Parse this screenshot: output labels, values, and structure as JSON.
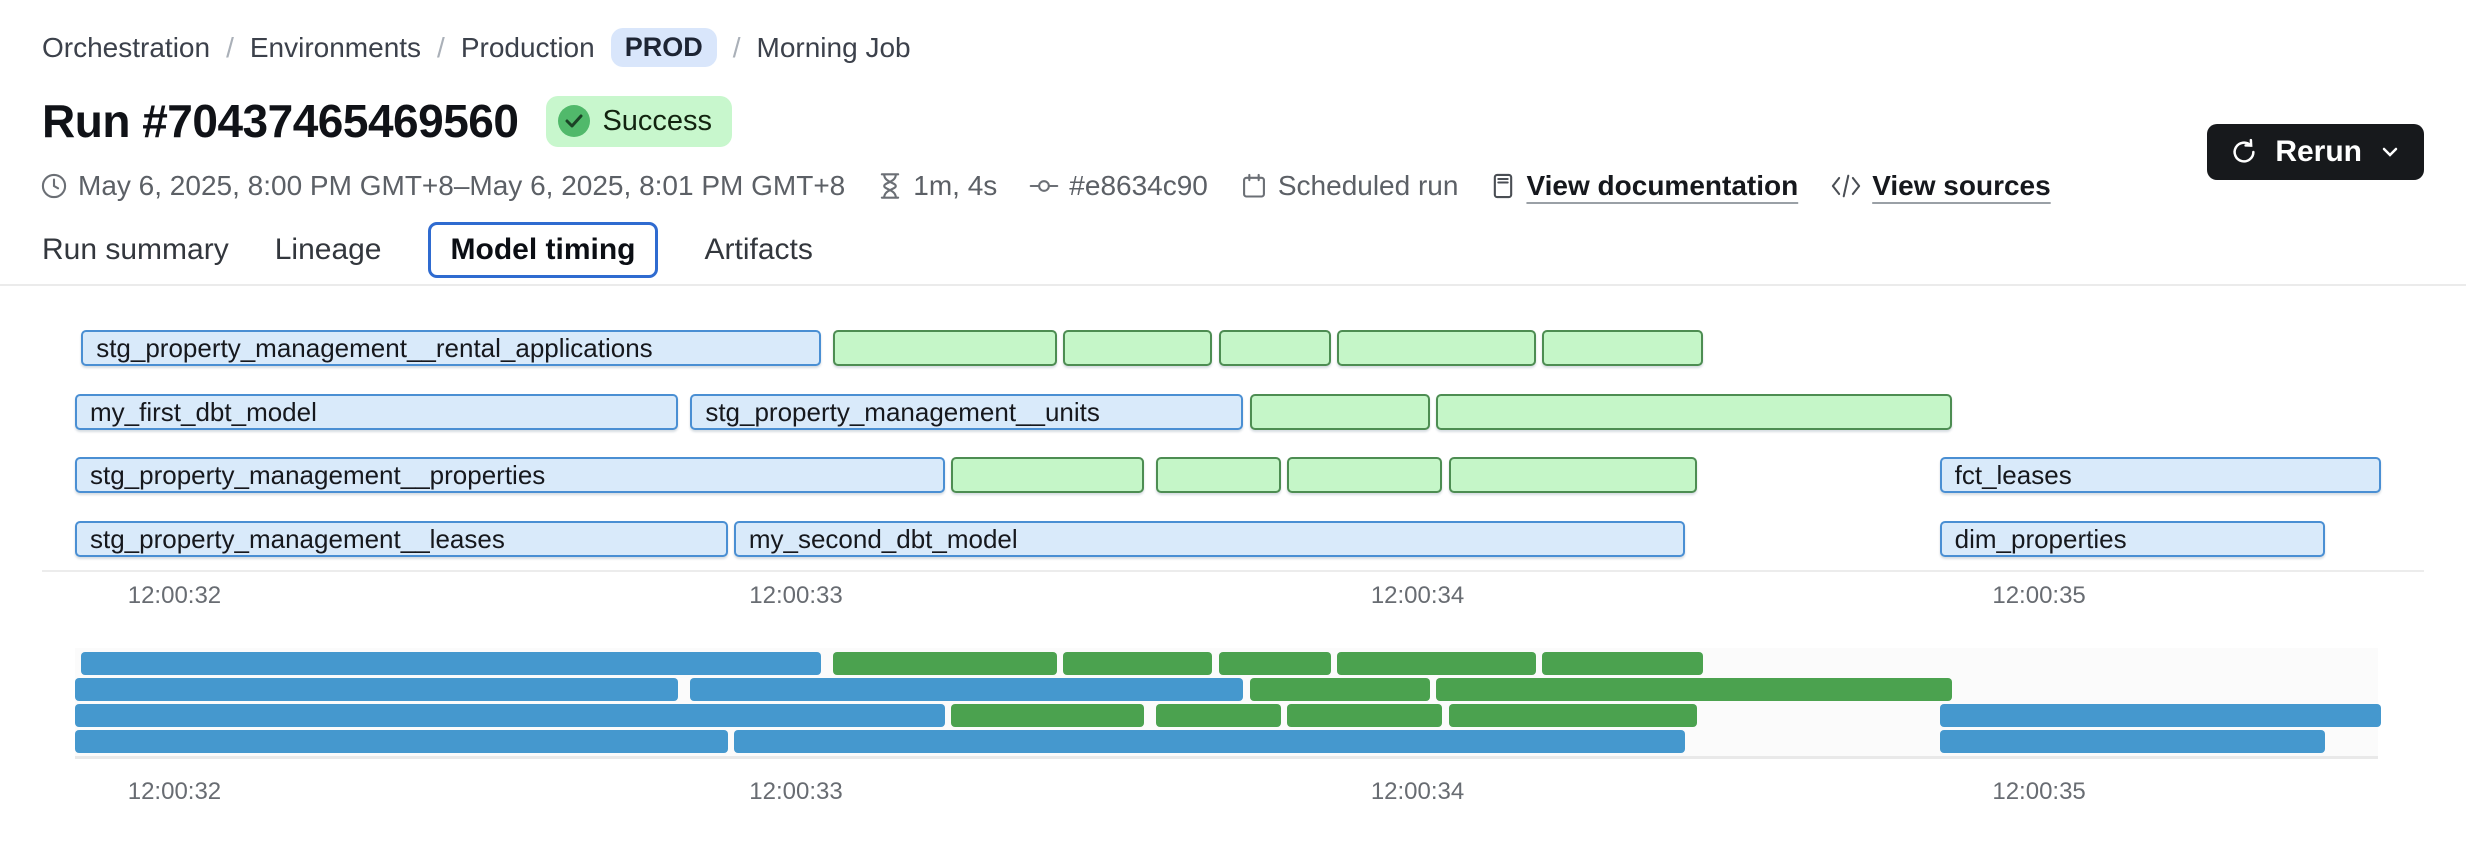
{
  "breadcrumb": {
    "separator": "/",
    "items": [
      {
        "label": "Orchestration",
        "type": "link"
      },
      {
        "label": "Environments",
        "type": "link"
      },
      {
        "label": "Production",
        "type": "link"
      },
      {
        "label": "PROD",
        "type": "badge"
      },
      {
        "label": "Morning Job",
        "type": "current"
      }
    ]
  },
  "header": {
    "title": "Run #70437465469560",
    "status": "Success"
  },
  "meta": {
    "time_range": "May 6, 2025, 8:00 PM GMT+8–May 6, 2025, 8:01 PM GMT+8",
    "duration": "1m, 4s",
    "commit": "#e8634c90",
    "trigger": "Scheduled run",
    "doc_link": "View documentation",
    "sources_link": "View sources",
    "rerun_label": "Rerun"
  },
  "tabs": [
    {
      "label": "Run summary",
      "selected": false
    },
    {
      "label": "Lineage",
      "selected": false
    },
    {
      "label": "Model timing",
      "selected": true
    },
    {
      "label": "Artifacts",
      "selected": false
    }
  ],
  "chart_data": {
    "type": "gantt",
    "title": "Model timing",
    "x_axis": {
      "tick_labels": [
        "12:00:32",
        "12:00:33",
        "12:00:34",
        "12:00:35"
      ],
      "tick_seconds": [
        32,
        33,
        34,
        35
      ],
      "domain_seconds": [
        31.84,
        35.6
      ]
    },
    "colors": {
      "bar_blue_fill": "#d9eafa",
      "bar_blue_border": "#4a8fd3",
      "bar_green_fill": "#c5f6c8",
      "bar_green_border": "#4d8d52",
      "minimap_blue": "#4598ce",
      "minimap_green": "#4ba24f"
    },
    "rows": [
      {
        "segments": [
          {
            "label": "stg_property_management__rental_applications",
            "color": "blue",
            "start_s": 31.85,
            "end_s": 33.04
          },
          {
            "color": "green",
            "start_s": 33.06,
            "end_s": 33.42
          },
          {
            "color": "green",
            "start_s": 33.43,
            "end_s": 33.67
          },
          {
            "color": "green",
            "start_s": 33.68,
            "end_s": 33.86
          },
          {
            "color": "green",
            "start_s": 33.87,
            "end_s": 34.19
          },
          {
            "color": "green",
            "start_s": 34.2,
            "end_s": 34.46
          }
        ]
      },
      {
        "segments": [
          {
            "label": "my_first_dbt_model",
            "color": "blue",
            "start_s": 31.84,
            "end_s": 32.81
          },
          {
            "label": "stg_property_management__units",
            "color": "blue",
            "start_s": 32.83,
            "end_s": 33.72
          },
          {
            "color": "green",
            "start_s": 33.73,
            "end_s": 34.02
          },
          {
            "color": "green",
            "start_s": 34.03,
            "end_s": 34.86
          }
        ]
      },
      {
        "segments": [
          {
            "label": "stg_property_management__properties",
            "color": "blue",
            "start_s": 31.84,
            "end_s": 33.24
          },
          {
            "color": "green",
            "start_s": 33.25,
            "end_s": 33.56
          },
          {
            "color": "green",
            "start_s": 33.58,
            "end_s": 33.78
          },
          {
            "color": "green",
            "start_s": 33.79,
            "end_s": 34.04
          },
          {
            "color": "green",
            "start_s": 34.05,
            "end_s": 34.45
          },
          {
            "label": "fct_leases",
            "color": "blue",
            "start_s": 34.84,
            "end_s": 35.55
          }
        ]
      },
      {
        "segments": [
          {
            "label": "stg_property_management__leases",
            "color": "blue",
            "start_s": 31.84,
            "end_s": 32.89
          },
          {
            "label": "my_second_dbt_model",
            "color": "blue",
            "start_s": 32.9,
            "end_s": 34.43
          },
          {
            "label": "dim_properties",
            "color": "blue",
            "start_s": 34.84,
            "end_s": 35.46
          }
        ]
      }
    ]
  }
}
